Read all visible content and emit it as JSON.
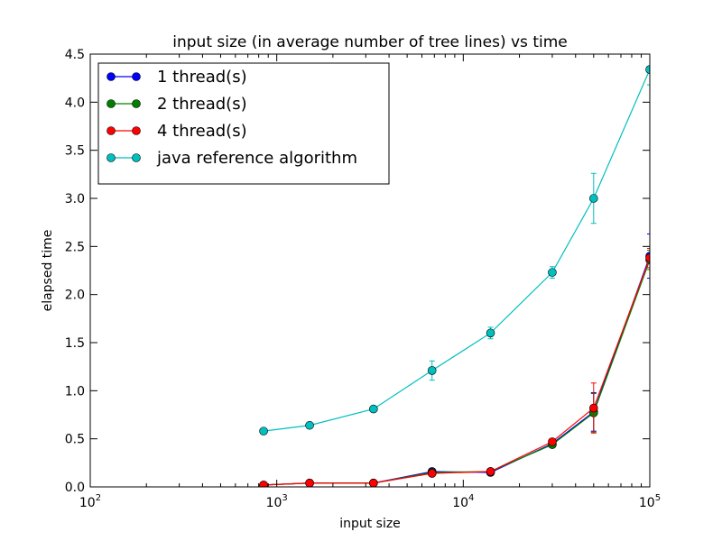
{
  "chart_data": {
    "type": "line",
    "title": "input size (in average number of tree lines) vs time",
    "xlabel": "input size",
    "ylabel": "elapsed time",
    "xscale": "log",
    "xlim": [
      100,
      100000
    ],
    "ylim": [
      0,
      4.5
    ],
    "x_ticks": [
      {
        "value": 100,
        "base": "10",
        "exp": "2"
      },
      {
        "value": 1000,
        "base": "10",
        "exp": "3"
      },
      {
        "value": 10000,
        "base": "10",
        "exp": "4"
      },
      {
        "value": 100000,
        "base": "10",
        "exp": "5"
      }
    ],
    "y_ticks": [
      {
        "value": 0,
        "label": "0.0"
      },
      {
        "value": 0.5,
        "label": "0.5"
      },
      {
        "value": 1.0,
        "label": "1.0"
      },
      {
        "value": 1.5,
        "label": "1.5"
      },
      {
        "value": 2.0,
        "label": "2.0"
      },
      {
        "value": 2.5,
        "label": "2.5"
      },
      {
        "value": 3.0,
        "label": "3.0"
      },
      {
        "value": 3.5,
        "label": "3.5"
      },
      {
        "value": 4.0,
        "label": "4.0"
      },
      {
        "value": 4.5,
        "label": "4.5"
      }
    ],
    "grid": false,
    "legend_position": "top-left",
    "x": [
      850,
      1500,
      3300,
      6800,
      14000,
      30000,
      50000,
      100000
    ],
    "series": [
      {
        "name": "1 thread(s)",
        "color": "#0000ff",
        "values": [
          0.02,
          0.04,
          0.04,
          0.16,
          0.15,
          0.45,
          0.78,
          2.4
        ],
        "errors": [
          0.005,
          0.005,
          0.005,
          0.015,
          0.01,
          0.02,
          0.2,
          0.23
        ]
      },
      {
        "name": "2 thread(s)",
        "color": "#008000",
        "values": [
          0.02,
          0.04,
          0.04,
          0.15,
          0.16,
          0.44,
          0.77,
          2.36
        ],
        "errors": [
          0.005,
          0.005,
          0.005,
          0.01,
          0.01,
          0.02,
          0.2,
          0.1
        ]
      },
      {
        "name": "4 thread(s)",
        "color": "#ff0000",
        "values": [
          0.02,
          0.04,
          0.04,
          0.14,
          0.16,
          0.47,
          0.82,
          2.38
        ],
        "errors": [
          0.005,
          0.005,
          0.005,
          0.01,
          0.01,
          0.02,
          0.26,
          0.1
        ]
      },
      {
        "name": "java reference algorithm",
        "color": "#00bfbf",
        "values": [
          0.58,
          0.64,
          0.81,
          1.21,
          1.6,
          2.23,
          3.0,
          4.34
        ],
        "errors": [
          0.01,
          0.01,
          0.02,
          0.1,
          0.06,
          0.06,
          0.26,
          0.16
        ]
      }
    ]
  }
}
